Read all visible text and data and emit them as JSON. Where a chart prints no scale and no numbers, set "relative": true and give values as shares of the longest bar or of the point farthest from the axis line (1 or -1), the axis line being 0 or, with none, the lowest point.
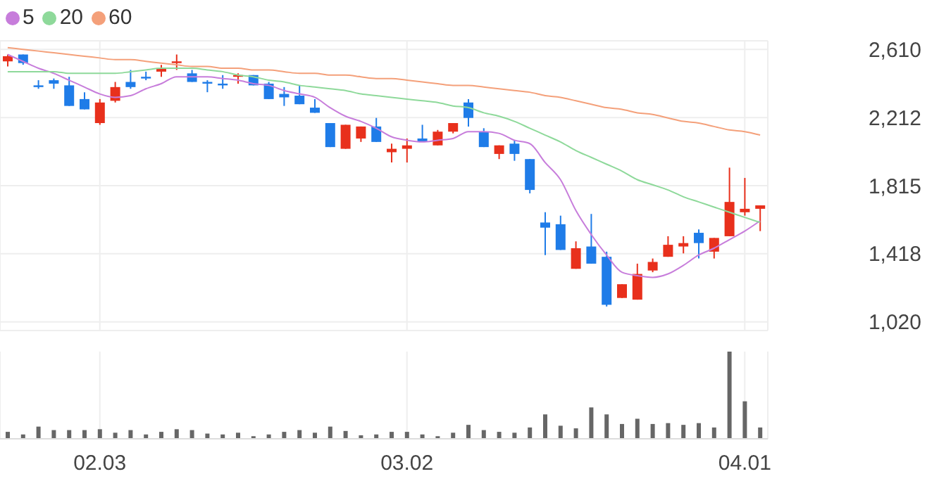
{
  "chart_data": [
    {
      "type": "candlestick",
      "categories": [
        null,
        null,
        null,
        null,
        null,
        null,
        "02.03",
        null,
        null,
        null,
        null,
        null,
        null,
        null,
        null,
        null,
        null,
        null,
        null,
        null,
        null,
        null,
        null,
        null,
        null,
        null,
        "03.02",
        null,
        null,
        null,
        null,
        null,
        null,
        null,
        null,
        null,
        null,
        null,
        null,
        null,
        null,
        null,
        null,
        null,
        null,
        null,
        null,
        null,
        "04.01",
        null
      ],
      "ohlc": [
        [
          2540,
          2580,
          2510,
          2570
        ],
        [
          2580,
          2580,
          2520,
          2530
        ],
        [
          2400,
          2430,
          2380,
          2390
        ],
        [
          2430,
          2440,
          2380,
          2410
        ],
        [
          2400,
          2450,
          2280,
          2280
        ],
        [
          2320,
          2360,
          2260,
          2260
        ],
        [
          2180,
          2320,
          2170,
          2300
        ],
        [
          2310,
          2420,
          2300,
          2390
        ],
        [
          2420,
          2490,
          2380,
          2390
        ],
        [
          2450,
          2480,
          2430,
          2440
        ],
        [
          2480,
          2520,
          2450,
          2500
        ],
        [
          2530,
          2580,
          2490,
          2540
        ],
        [
          2470,
          2490,
          2420,
          2420
        ],
        [
          2420,
          2430,
          2360,
          2410
        ],
        [
          2410,
          2460,
          2380,
          2400
        ],
        [
          2450,
          2470,
          2410,
          2460
        ],
        [
          2460,
          2460,
          2400,
          2400
        ],
        [
          2410,
          2420,
          2320,
          2320
        ],
        [
          2350,
          2390,
          2280,
          2330
        ],
        [
          2340,
          2400,
          2290,
          2290
        ],
        [
          2270,
          2320,
          2240,
          2240
        ],
        [
          2180,
          2180,
          2040,
          2040
        ],
        [
          2030,
          2170,
          2030,
          2170
        ],
        [
          2090,
          2160,
          2070,
          2160
        ],
        [
          2160,
          2210,
          2070,
          2070
        ],
        [
          2010,
          2060,
          1950,
          2030
        ],
        [
          2030,
          2090,
          1950,
          2050
        ],
        [
          2090,
          2170,
          2070,
          2070
        ],
        [
          2050,
          2140,
          2050,
          2130
        ],
        [
          2130,
          2180,
          2120,
          2180
        ],
        [
          2300,
          2320,
          2160,
          2210
        ],
        [
          2130,
          2150,
          2040,
          2040
        ],
        [
          2000,
          2050,
          1970,
          2050
        ],
        [
          2060,
          2080,
          1960,
          2000
        ],
        [
          1970,
          1970,
          1770,
          1790
        ],
        [
          1600,
          1660,
          1410,
          1570
        ],
        [
          1590,
          1640,
          1440,
          1440
        ],
        [
          1330,
          1490,
          1330,
          1450
        ],
        [
          1460,
          1650,
          1360,
          1360
        ],
        [
          1400,
          1430,
          1110,
          1120
        ],
        [
          1160,
          1240,
          1160,
          1240
        ],
        [
          1150,
          1360,
          1150,
          1300
        ],
        [
          1320,
          1390,
          1310,
          1370
        ],
        [
          1400,
          1520,
          1400,
          1470
        ],
        [
          1460,
          1520,
          1420,
          1480
        ],
        [
          1540,
          1560,
          1390,
          1480
        ],
        [
          1430,
          1510,
          1390,
          1510
        ],
        [
          1520,
          1920,
          1520,
          1720
        ],
        [
          1660,
          1860,
          1640,
          1680
        ],
        [
          1680,
          1700,
          1550,
          1700
        ]
      ],
      "colors": [
        "#e8301c",
        "#1f7ce8",
        "#1f7ce8",
        "#1f7ce8",
        "#1f7ce8",
        "#1f7ce8",
        "#e8301c",
        "#e8301c",
        "#1f7ce8",
        "#1f7ce8",
        "#e8301c",
        "#e8301c",
        "#1f7ce8",
        "#1f7ce8",
        "#1f7ce8",
        "#e8301c",
        "#1f7ce8",
        "#1f7ce8",
        "#1f7ce8",
        "#1f7ce8",
        "#1f7ce8",
        "#1f7ce8",
        "#e8301c",
        "#e8301c",
        "#1f7ce8",
        "#e8301c",
        "#e8301c",
        "#1f7ce8",
        "#e8301c",
        "#e8301c",
        "#1f7ce8",
        "#1f7ce8",
        "#e8301c",
        "#1f7ce8",
        "#1f7ce8",
        "#1f7ce8",
        "#1f7ce8",
        "#e8301c",
        "#1f7ce8",
        "#1f7ce8",
        "#e8301c",
        "#e8301c",
        "#e8301c",
        "#e8301c",
        "#e8301c",
        "#1f7ce8",
        "#e8301c",
        "#e8301c",
        "#e8301c",
        "#e8301c"
      ],
      "series": [
        {
          "name": "5",
          "type": "line",
          "color": "#c77ddb",
          "values": [
            2580,
            2540,
            2500,
            2470,
            2430,
            2390,
            2350,
            2330,
            2340,
            2380,
            2410,
            2450,
            2450,
            2450,
            2440,
            2430,
            2410,
            2400,
            2370,
            2350,
            2330,
            2270,
            2220,
            2190,
            2150,
            2100,
            2080,
            2070,
            2080,
            2090,
            2130,
            2130,
            2120,
            2080,
            2060,
            1950,
            1850,
            1670,
            1530,
            1410,
            1310,
            1290,
            1280,
            1300,
            1350,
            1410,
            1450,
            1500,
            1550,
            1610
          ]
        },
        {
          "name": "20",
          "type": "line",
          "color": "#8ed99a",
          "values": [
            2480,
            2480,
            2480,
            2480,
            2470,
            2470,
            2470,
            2470,
            2480,
            2490,
            2500,
            2500,
            2500,
            2490,
            2480,
            2460,
            2450,
            2430,
            2420,
            2400,
            2390,
            2380,
            2370,
            2350,
            2340,
            2330,
            2320,
            2310,
            2300,
            2280,
            2270,
            2240,
            2220,
            2190,
            2150,
            2110,
            2070,
            2020,
            1980,
            1940,
            1900,
            1850,
            1820,
            1790,
            1750,
            1720,
            1690,
            1660,
            1630,
            1600
          ]
        },
        {
          "name": "60",
          "type": "line",
          "color": "#f4a07a",
          "values": [
            2620,
            2610,
            2600,
            2590,
            2580,
            2570,
            2560,
            2550,
            2550,
            2540,
            2530,
            2520,
            2510,
            2510,
            2500,
            2500,
            2490,
            2490,
            2480,
            2470,
            2470,
            2460,
            2460,
            2450,
            2440,
            2440,
            2430,
            2420,
            2410,
            2400,
            2400,
            2390,
            2380,
            2370,
            2360,
            2340,
            2330,
            2310,
            2290,
            2270,
            2260,
            2240,
            2230,
            2210,
            2190,
            2180,
            2160,
            2140,
            2130,
            2110
          ]
        }
      ],
      "ylim": [
        970,
        2660
      ],
      "yticks": [
        {
          "value": 1020,
          "label": "1,020"
        },
        {
          "value": 1418,
          "label": "1,418"
        },
        {
          "value": 1815,
          "label": "1,815"
        },
        {
          "value": 2212,
          "label": "2,212"
        },
        {
          "value": 2610,
          "label": "2,610"
        }
      ],
      "grid": true,
      "legend": "top left",
      "tick_labels": "y"
    },
    {
      "type": "bar",
      "relative": true,
      "color": "#666666",
      "categories": [
        null,
        null,
        null,
        null,
        null,
        null,
        "02.03",
        null,
        null,
        null,
        null,
        null,
        null,
        null,
        null,
        null,
        null,
        null,
        null,
        null,
        null,
        null,
        null,
        null,
        null,
        null,
        "03.02",
        null,
        null,
        null,
        null,
        null,
        null,
        null,
        null,
        null,
        null,
        null,
        null,
        null,
        null,
        null,
        null,
        null,
        null,
        null,
        null,
        null,
        "04.01",
        null
      ],
      "values": [
        0.08,
        0.05,
        0.14,
        0.1,
        0.1,
        0.1,
        0.11,
        0.07,
        0.1,
        0.05,
        0.08,
        0.11,
        0.1,
        0.06,
        0.05,
        0.07,
        0.03,
        0.05,
        0.08,
        0.1,
        0.07,
        0.14,
        0.09,
        0.04,
        0.05,
        0.08,
        0.08,
        0.05,
        0.03,
        0.07,
        0.16,
        0.1,
        0.08,
        0.07,
        0.13,
        0.28,
        0.15,
        0.12,
        0.36,
        0.28,
        0.17,
        0.23,
        0.17,
        0.18,
        0.16,
        0.18,
        0.13,
        1,
        0.43,
        0.13
      ],
      "grid": "x",
      "tick_labels": "x"
    }
  ]
}
